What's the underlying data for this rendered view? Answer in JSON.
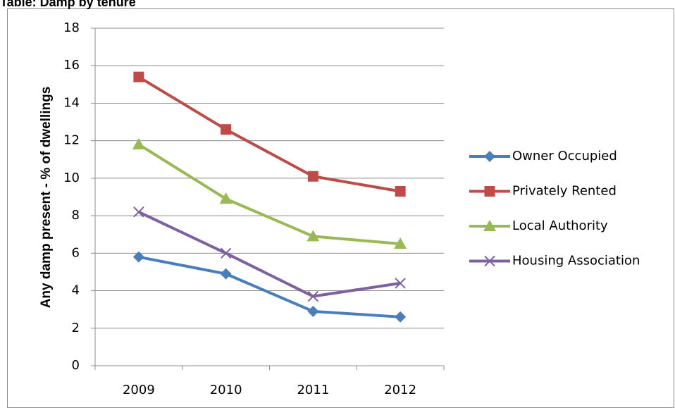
{
  "chart_data": {
    "type": "line",
    "title": "Table: Damp by tenure",
    "y_label": "Any damp present - % of dwellings",
    "categories": [
      "2009",
      "2010",
      "2011",
      "2012"
    ],
    "series": [
      {
        "name": "Owner Occupied",
        "color": "#4a7ebb",
        "marker": "diamond",
        "values": [
          5.8,
          4.9,
          2.9,
          2.6
        ]
      },
      {
        "name": "Privately Rented",
        "color": "#be4b48",
        "marker": "square",
        "values": [
          15.4,
          12.6,
          10.1,
          9.3
        ]
      },
      {
        "name": "Local Authority",
        "color": "#98b954",
        "marker": "triangle",
        "values": [
          11.8,
          8.9,
          6.9,
          6.5
        ]
      },
      {
        "name": "Housing Association",
        "color": "#7d60a0",
        "marker": "x",
        "values": [
          8.2,
          6.0,
          3.7,
          4.4
        ]
      }
    ],
    "ylim": [
      0,
      18
    ],
    "yticks": [
      0,
      2,
      4,
      6,
      8,
      10,
      12,
      14,
      16,
      18
    ],
    "grid": true,
    "legend": "right"
  }
}
